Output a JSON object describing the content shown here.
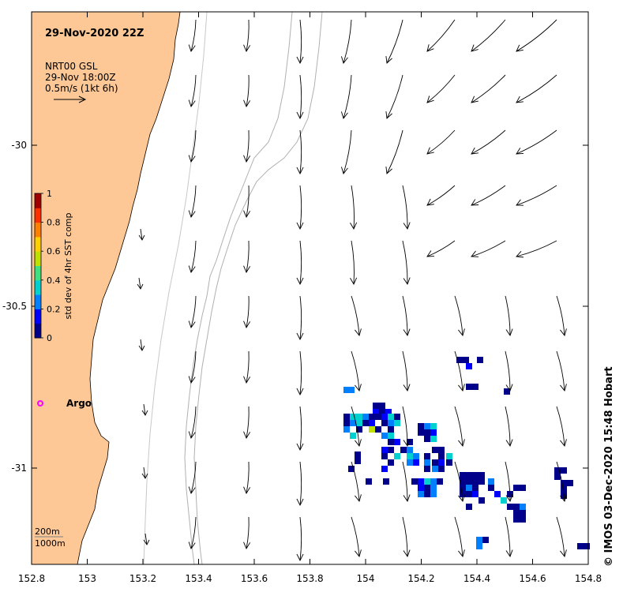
{
  "title": "29-Nov-2020 22Z",
  "current_legend": {
    "product": "NRT00 GSL",
    "time": "29-Nov 18:00Z",
    "scale": "0.5m/s (1kt 6h)"
  },
  "colorbar": {
    "label": "std dev of 4hr SST comp",
    "ticks": [
      "0",
      "0.2",
      "0.4",
      "0.6",
      "0.8",
      "1"
    ],
    "colors": [
      "#00008b",
      "#0000ff",
      "#0080ff",
      "#00d0d0",
      "#40e080",
      "#c0e000",
      "#ffd000",
      "#ff8000",
      "#ff3000",
      "#a00000"
    ]
  },
  "axes": {
    "x_ticks": [
      "152.8",
      "153",
      "153.2",
      "153.4",
      "153.6",
      "153.8",
      "154",
      "154.2",
      "154.4",
      "154.6",
      "154.8"
    ],
    "y_ticks": [
      "-30",
      "-30.5",
      "-31"
    ]
  },
  "argo": {
    "label": "Argo",
    "color": "#ff00ff"
  },
  "isobaths": {
    "shallow": "200m",
    "deep": "1000m"
  },
  "credit": "© IMOS 03-Dec-2020 15:48 Hobart",
  "land_color": "#fdc896"
}
